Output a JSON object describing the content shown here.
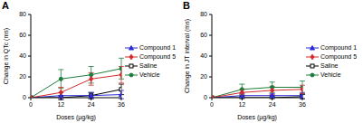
{
  "chart_data": [
    {
      "type": "line",
      "title": "A",
      "x": [
        0,
        12,
        24,
        36
      ],
      "xlim": [
        0,
        36
      ],
      "xticks": [
        0,
        12,
        24,
        36
      ],
      "ylim": [
        0,
        80
      ],
      "yticks": [
        0,
        20,
        40,
        60,
        80
      ],
      "x_label": "Doses (µg/kg)",
      "y_label": "Change in QTc (ms)",
      "legend": "right",
      "series": [
        {
          "name": "Saline",
          "color": "#000000",
          "marker": "open_square",
          "values": [
            0,
            0,
            2,
            8
          ],
          "errors": [
            0,
            2,
            3,
            5
          ]
        },
        {
          "name": "Vehicle",
          "color": "#1e7b3c",
          "marker": "circle",
          "values": [
            0,
            18,
            22,
            28
          ],
          "errors": [
            0,
            9,
            8,
            10
          ]
        },
        {
          "name": "Compound 1",
          "color": "#2b2bd6",
          "marker": "triangle",
          "values": [
            0,
            2,
            2,
            3
          ],
          "errors": [
            0,
            3,
            3,
            4
          ]
        },
        {
          "name": "Compound 5",
          "color": "#d42a2a",
          "marker": "diamond",
          "values": [
            0,
            5,
            18,
            22
          ],
          "errors": [
            0,
            5,
            6,
            8
          ]
        }
      ]
    },
    {
      "type": "line",
      "title": "B",
      "x": [
        0,
        12,
        24,
        36
      ],
      "xlim": [
        0,
        36
      ],
      "xticks": [
        0,
        12,
        24,
        36
      ],
      "ylim": [
        0,
        80
      ],
      "yticks": [
        0,
        20,
        40,
        60,
        80
      ],
      "x_label": "Doses (µg/kg)",
      "y_label": "Change in JT interval (ms)",
      "legend": "right",
      "series": [
        {
          "name": "Saline",
          "color": "#000000",
          "marker": "open_square",
          "values": [
            0,
            0,
            0,
            1
          ],
          "errors": [
            0,
            1,
            1,
            2
          ]
        },
        {
          "name": "Vehicle",
          "color": "#1e7b3c",
          "marker": "circle",
          "values": [
            0,
            8,
            10,
            10
          ],
          "errors": [
            0,
            5,
            5,
            6
          ]
        },
        {
          "name": "Compound 1",
          "color": "#2b2bd6",
          "marker": "triangle",
          "values": [
            0,
            2,
            2,
            2
          ],
          "errors": [
            0,
            2,
            2,
            3
          ]
        },
        {
          "name": "Compound 5",
          "color": "#d42a2a",
          "marker": "diamond",
          "values": [
            0,
            5,
            7,
            8
          ],
          "errors": [
            0,
            3,
            4,
            4
          ]
        }
      ]
    }
  ]
}
